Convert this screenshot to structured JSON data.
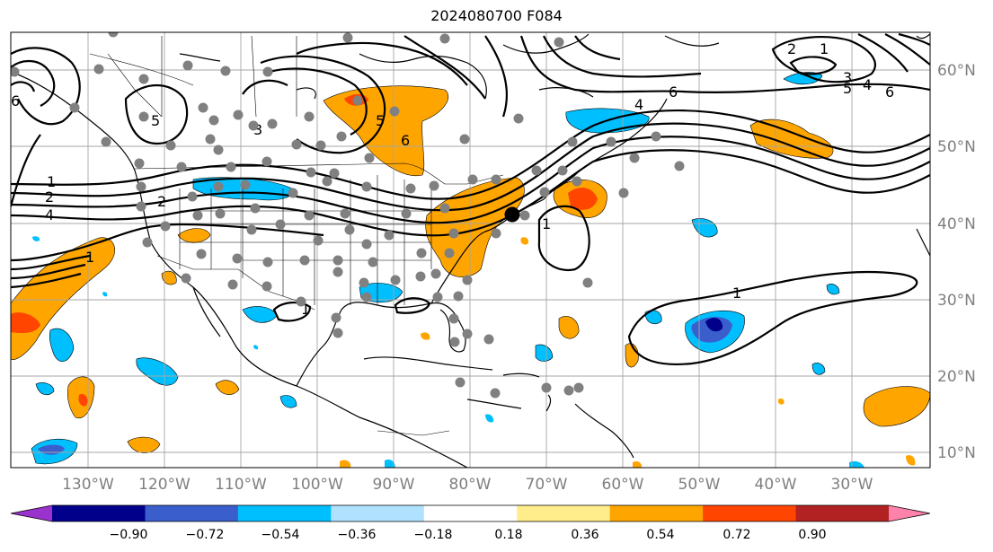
{
  "title": "2024080700 F084",
  "longitude_labels": [
    "130°W",
    "120°W",
    "110°W",
    "100°W",
    "90°W",
    "80°W",
    "70°W",
    "60°W",
    "50°W",
    "40°W",
    "30°W"
  ],
  "latitude_labels": [
    "60°N",
    "50°N",
    "40°N",
    "30°N",
    "20°N",
    "10°N"
  ],
  "colorbar": {
    "ticks": [
      "−0.90",
      "−0.72",
      "−0.54",
      "−0.36",
      "−0.18",
      "0.18",
      "0.36",
      "0.54",
      "0.72",
      "0.90"
    ],
    "colors": [
      "#9a32cd",
      "#00008b",
      "#3a5fcd",
      "#00bfff",
      "#b0e2ff",
      "#ffffff",
      "#ffec8b",
      "#ffa500",
      "#ff4500",
      "#b22222",
      "#ff82ab"
    ]
  },
  "contour_labels": [
    "1",
    "2",
    "4",
    "6",
    "6",
    "5",
    "4",
    "3",
    "2",
    "1",
    "6",
    "5",
    "4",
    "1",
    "1",
    "1",
    "5",
    "6",
    "3",
    "2",
    "1"
  ],
  "map": {
    "features": [
      "coastlines",
      "country-borders",
      "state-borders",
      "graticule",
      "station-markers",
      "highlight-point"
    ]
  }
}
